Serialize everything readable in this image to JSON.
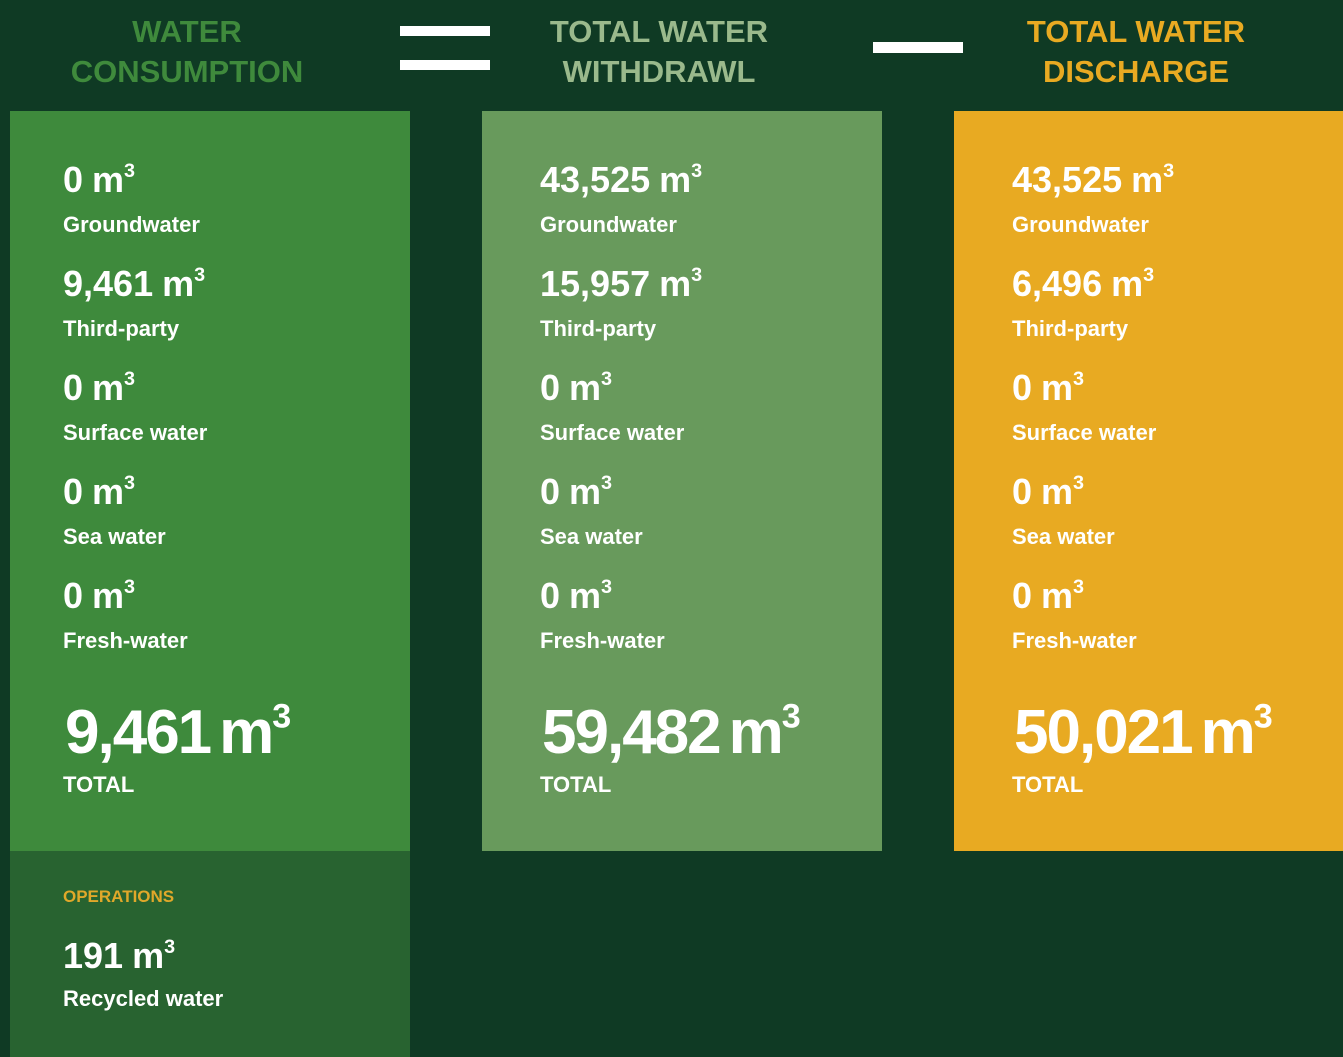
{
  "columns": [
    {
      "title_lines": [
        "WATER",
        "CONSUMPTION"
      ],
      "items": [
        {
          "amount": "0",
          "unit": "m",
          "exponent": "3",
          "label": "Groundwater"
        },
        {
          "amount": "9,461",
          "unit": "m",
          "exponent": "3",
          "label": "Third-party"
        },
        {
          "amount": "0",
          "unit": "m",
          "exponent": "3",
          "label": "Surface water"
        },
        {
          "amount": "0",
          "unit": "m",
          "exponent": "3",
          "label": "Sea water"
        },
        {
          "amount": "0",
          "unit": "m",
          "exponent": "3",
          "label": "Fresh-water"
        }
      ],
      "total": {
        "amount": "9,461",
        "unit": "m",
        "exponent": "3",
        "label": "TOTAL"
      }
    },
    {
      "title_lines": [
        "TOTAL WATER",
        "WITHDRAWL"
      ],
      "items": [
        {
          "amount": "43,525",
          "unit": "m",
          "exponent": "3",
          "label": "Groundwater"
        },
        {
          "amount": "15,957",
          "unit": "m",
          "exponent": "3",
          "label": "Third-party"
        },
        {
          "amount": "0",
          "unit": "m",
          "exponent": "3",
          "label": "Surface water"
        },
        {
          "amount": "0",
          "unit": "m",
          "exponent": "3",
          "label": "Sea water"
        },
        {
          "amount": "0",
          "unit": "m",
          "exponent": "3",
          "label": "Fresh-water"
        }
      ],
      "total": {
        "amount": "59,482",
        "unit": "m",
        "exponent": "3",
        "label": "TOTAL"
      }
    },
    {
      "title_lines": [
        "TOTAL WATER",
        "DISCHARGE"
      ],
      "items": [
        {
          "amount": "43,525",
          "unit": "m",
          "exponent": "3",
          "label": "Groundwater"
        },
        {
          "amount": "6,496",
          "unit": "m",
          "exponent": "3",
          "label": "Third-party"
        },
        {
          "amount": "0",
          "unit": "m",
          "exponent": "3",
          "label": "Surface water"
        },
        {
          "amount": "0",
          "unit": "m",
          "exponent": "3",
          "label": "Sea water"
        },
        {
          "amount": "0",
          "unit": "m",
          "exponent": "3",
          "label": "Fresh-water"
        }
      ],
      "total": {
        "amount": "50,021",
        "unit": "m",
        "exponent": "3",
        "label": "TOTAL"
      }
    }
  ],
  "operations": {
    "heading": "OPERATIONS",
    "items": [
      {
        "amount": "191",
        "unit": "m",
        "exponent": "3",
        "label": "Recycled water"
      }
    ]
  }
}
